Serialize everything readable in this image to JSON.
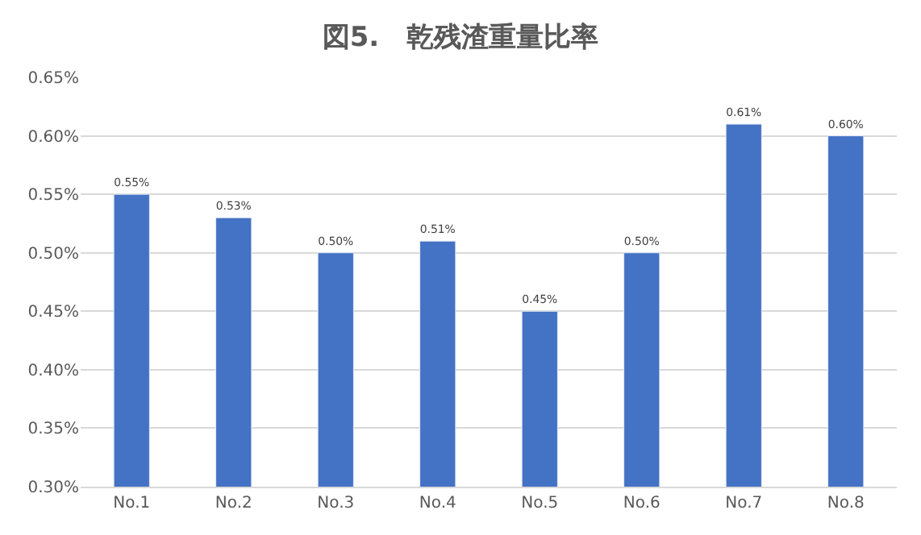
{
  "chart_data": {
    "type": "bar",
    "title": "図5.　乾残渣重量比率",
    "categories": [
      "No.1",
      "No.2",
      "No.3",
      "No.4",
      "No.5",
      "No.6",
      "No.7",
      "No.8"
    ],
    "values": [
      0.55,
      0.53,
      0.5,
      0.51,
      0.45,
      0.5,
      0.61,
      0.6
    ],
    "value_labels": [
      "0.55%",
      "0.53%",
      "0.50%",
      "0.51%",
      "0.45%",
      "0.50%",
      "0.61%",
      "0.60%"
    ],
    "color": "#4472c4",
    "ylim": [
      0.3,
      0.65
    ],
    "yticks": [
      {
        "value": 0.3,
        "label": "0.30%"
      },
      {
        "value": 0.35,
        "label": "0.35%"
      },
      {
        "value": 0.4,
        "label": "0.40%"
      },
      {
        "value": 0.45,
        "label": "0.45%"
      },
      {
        "value": 0.5,
        "label": "0.50%"
      },
      {
        "value": 0.55,
        "label": "0.55%"
      },
      {
        "value": 0.6,
        "label": "0.60%"
      },
      {
        "value": 0.65,
        "label": "0.65%"
      }
    ],
    "grid": "y",
    "legend": false
  }
}
